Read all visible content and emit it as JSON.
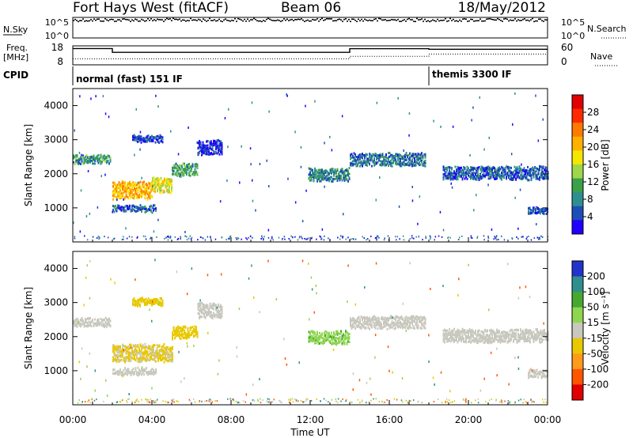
{
  "chart_data": [
    {
      "type": "line",
      "panel": "n-sky-n-search",
      "header": {
        "radar": "Fort Hays West (fitACF)",
        "beam": "Beam 06",
        "date": "18/May/2012"
      },
      "left_label": "N.Sky",
      "right_label": "N.Search",
      "left_ticks": [
        "10^5",
        "10^0"
      ],
      "right_ticks": [
        "10^5",
        "10^0"
      ],
      "series": [
        {
          "name": "N.Sky",
          "style": "dots",
          "approx_value_log": 4.5
        },
        {
          "name": "N.Search",
          "style": "dotted"
        }
      ]
    },
    {
      "type": "line",
      "panel": "freq-nave",
      "left_label_1": "Freq.",
      "left_label_2": "[MHz]",
      "right_label": "Nave",
      "left_ticks": [
        "18",
        "8"
      ],
      "right_ticks": [
        "60",
        "0"
      ],
      "ylim_left": [
        8,
        18
      ],
      "ylim_right": [
        0,
        60
      ],
      "series": [
        {
          "name": "Freq.",
          "style": "solid",
          "points": [
            [
              0,
              16.6
            ],
            [
              2,
              16.6
            ],
            [
              2,
              14.6
            ],
            [
              14,
              14.6
            ],
            [
              14,
              16.5
            ],
            [
              18,
              16.5
            ],
            [
              18,
              16.2
            ],
            [
              24,
              16.2
            ]
          ]
        },
        {
          "name": "Nave",
          "style": "dotted",
          "points": [
            [
              0,
              19
            ],
            [
              14,
              19
            ],
            [
              14,
              27
            ],
            [
              18,
              27
            ],
            [
              18,
              34
            ],
            [
              24,
              34
            ]
          ]
        }
      ]
    },
    {
      "type": "table",
      "panel": "cpid",
      "label": "CPID",
      "segments": [
        {
          "start": 0,
          "end": 18,
          "text": "normal (fast) 151 IF"
        },
        {
          "start": 18,
          "end": 24,
          "text": "themis 3300 IF"
        }
      ]
    },
    {
      "type": "heatmap",
      "panel": "power",
      "ylabel": "Slant Range [km]",
      "colorbar_label": "Power [dB]",
      "colorbar_ticks": [
        "28",
        "24",
        "20",
        "16",
        "12",
        "8",
        "4"
      ],
      "colors": [
        "#2200ff",
        "#1e4db8",
        "#2f8f8f",
        "#3aa04a",
        "#9fd64a",
        "#f5e600",
        "#ffb000",
        "#ff7a00",
        "#ff2a00",
        "#e00000"
      ],
      "ylim": [
        0,
        4500
      ],
      "y_ticks": [
        "1000",
        "2000",
        "3000",
        "4000"
      ],
      "bands": [
        {
          "start": 0.0,
          "end": 1.9,
          "center": 2450,
          "width": 160,
          "power": 10
        },
        {
          "start": 2.0,
          "end": 4.0,
          "center": 1550,
          "width": 350,
          "power": 20
        },
        {
          "start": 4.0,
          "end": 5.0,
          "center": 1700,
          "width": 300,
          "power": 17
        },
        {
          "start": 5.0,
          "end": 6.3,
          "center": 2150,
          "width": 250,
          "power": 11
        },
        {
          "start": 2.0,
          "end": 4.2,
          "center": 1000,
          "width": 130,
          "power": 7
        },
        {
          "start": 3.0,
          "end": 4.5,
          "center": 3050,
          "width": 140,
          "power": 6
        },
        {
          "start": 6.3,
          "end": 7.5,
          "center": 2800,
          "width": 300,
          "power": 4
        },
        {
          "start": 11.9,
          "end": 14.0,
          "center": 2000,
          "width": 250,
          "power": 9
        },
        {
          "start": 14.0,
          "end": 17.8,
          "center": 2450,
          "width": 250,
          "power": 8
        },
        {
          "start": 18.7,
          "end": 24.0,
          "center": 2050,
          "width": 260,
          "power": 7
        },
        {
          "start": 23.0,
          "end": 24.0,
          "center": 950,
          "width": 150,
          "power": 6
        }
      ]
    },
    {
      "type": "heatmap",
      "panel": "velocity",
      "ylabel": "Slant Range [km]",
      "xlabel": "Time UT",
      "colorbar_label": "Velocity [m s⁻¹]",
      "colorbar_ticks": [
        "200",
        "100",
        "50",
        "15",
        "-15",
        "-50",
        "-100",
        "-200"
      ],
      "colors": [
        "#2233cc",
        "#2f8f8f",
        "#47a830",
        "#8fd650",
        "#c8c8be",
        "#e8c800",
        "#ff9a1a",
        "#ff5500",
        "#e00000"
      ],
      "ylim": [
        0,
        4500
      ],
      "y_ticks": [
        "1000",
        "2000",
        "3000",
        "4000"
      ],
      "x_ticks": [
        "00:00",
        "04:00",
        "08:00",
        "12:00",
        "16:00",
        "20:00",
        "00:00"
      ],
      "xlim": [
        0,
        24
      ],
      "bands": [
        {
          "start": 0.0,
          "end": 1.9,
          "center": 2450,
          "width": 160,
          "velocity": 0
        },
        {
          "start": 2.0,
          "end": 5.0,
          "center": 1550,
          "width": 350,
          "velocity": -20
        },
        {
          "start": 5.0,
          "end": 6.3,
          "center": 2150,
          "width": 250,
          "velocity": -30
        },
        {
          "start": 2.0,
          "end": 4.2,
          "center": 1000,
          "width": 130,
          "velocity": 0
        },
        {
          "start": 3.0,
          "end": 4.5,
          "center": 3050,
          "width": 140,
          "velocity": -30
        },
        {
          "start": 6.3,
          "end": 7.5,
          "center": 2800,
          "width": 300,
          "velocity": 0
        },
        {
          "start": 11.9,
          "end": 14.0,
          "center": 2000,
          "width": 250,
          "velocity": 40
        },
        {
          "start": 14.0,
          "end": 17.8,
          "center": 2450,
          "width": 250,
          "velocity": 0
        },
        {
          "start": 18.7,
          "end": 24.0,
          "center": 2050,
          "width": 260,
          "velocity": 0
        },
        {
          "start": 23.0,
          "end": 24.0,
          "center": 950,
          "width": 150,
          "velocity": 0
        }
      ]
    }
  ]
}
